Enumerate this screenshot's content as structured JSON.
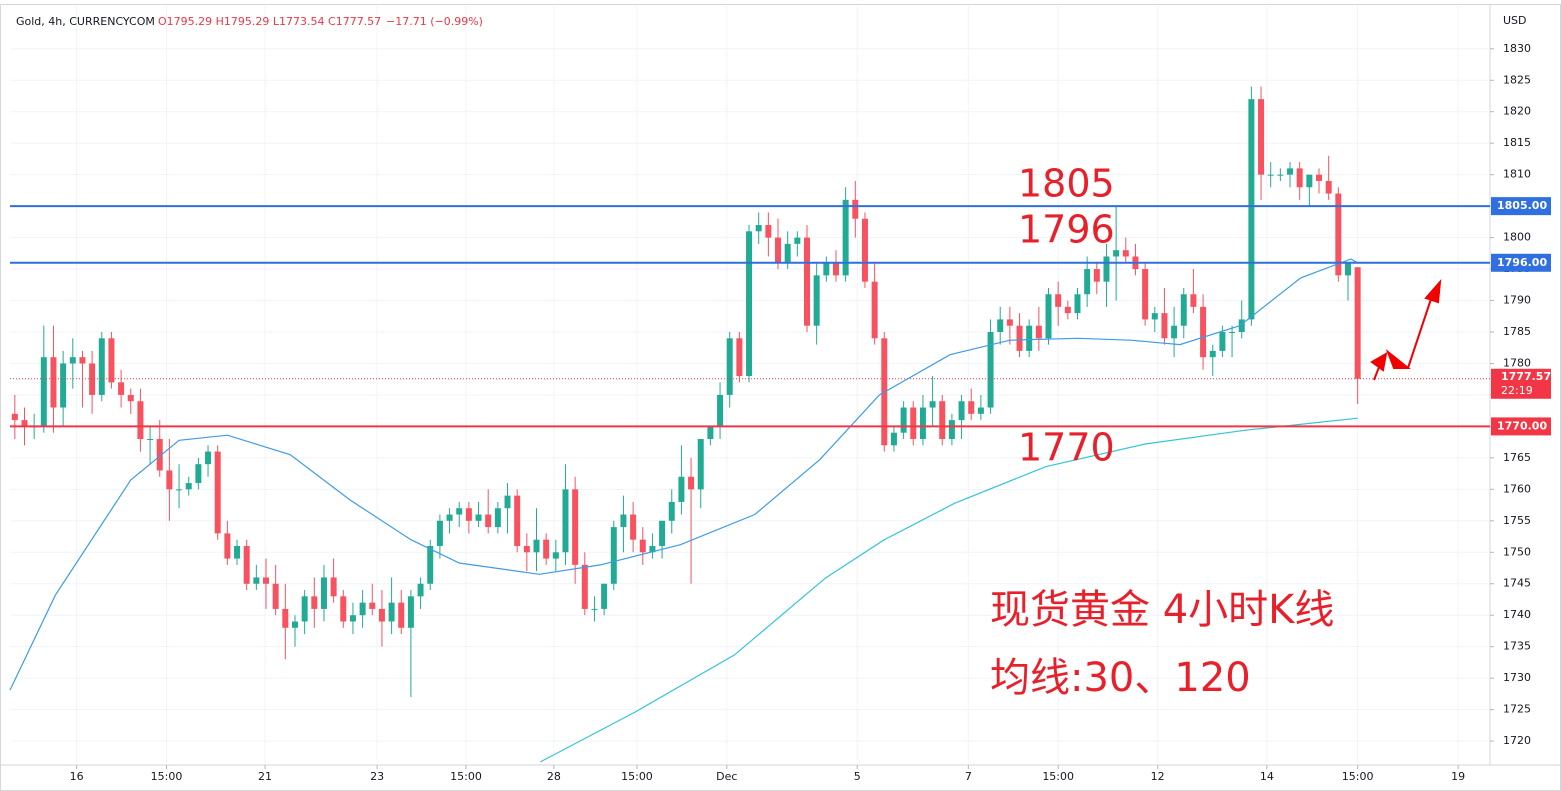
{
  "chart_data": {
    "type": "candlestick",
    "symbol": "Gold, 4h, CURRENCYCOM",
    "ohlc_text": "O1795.29 H1795.29 L1773.54 C1777.57",
    "change_text": "−17.71 (−0.99%)",
    "currency": "USD",
    "up_color": "#22ab94",
    "down_color": "#f7525f",
    "xlim": [
      -0.5,
      152.7
    ],
    "ylim": [
      1716.2,
      1836.8
    ],
    "yticks": [
      1720,
      1725,
      1730,
      1735,
      1740,
      1745,
      1750,
      1755,
      1760,
      1765,
      1770,
      1775,
      1780,
      1785,
      1790,
      1795,
      1800,
      1805,
      1810,
      1815,
      1820,
      1825,
      1830
    ],
    "xticks": [
      {
        "value": 6.4,
        "label": "16"
      },
      {
        "value": 15.7,
        "label": "15:00"
      },
      {
        "value": 25.9,
        "label": "21"
      },
      {
        "value": 37.5,
        "label": "23"
      },
      {
        "value": 46.7,
        "label": "15:00"
      },
      {
        "value": 55.8,
        "label": "28"
      },
      {
        "value": 64.4,
        "label": "15:00"
      },
      {
        "value": 73.7,
        "label": "Dec"
      },
      {
        "value": 87.2,
        "label": "5"
      },
      {
        "value": 98.7,
        "label": "7"
      },
      {
        "value": 108,
        "label": "15:00"
      },
      {
        "value": 118.3,
        "label": "12"
      },
      {
        "value": 129.6,
        "label": "14"
      },
      {
        "value": 139,
        "label": "15:00"
      },
      {
        "value": 149.4,
        "label": "19"
      }
    ],
    "candles": [
      [
        1772,
        1775,
        1768,
        1771
      ],
      [
        1771,
        1773,
        1767,
        1770
      ],
      [
        1770,
        1772,
        1768,
        1770
      ],
      [
        1770,
        1786,
        1769,
        1781
      ],
      [
        1781,
        1786,
        1769,
        1773
      ],
      [
        1773,
        1782,
        1770,
        1780
      ],
      [
        1780,
        1784,
        1776,
        1781
      ],
      [
        1781,
        1782,
        1773,
        1780
      ],
      [
        1780,
        1782,
        1772,
        1775
      ],
      [
        1775,
        1785,
        1774,
        1784
      ],
      [
        1784,
        1785,
        1776,
        1777
      ],
      [
        1777,
        1779,
        1773,
        1775
      ],
      [
        1775,
        1776,
        1772,
        1774
      ],
      [
        1774,
        1776,
        1766,
        1768
      ],
      [
        1768,
        1770,
        1764,
        1768
      ],
      [
        1768,
        1771,
        1762,
        1763
      ],
      [
        1763,
        1768,
        1755,
        1760
      ],
      [
        1760,
        1764,
        1757,
        1760
      ],
      [
        1760,
        1762,
        1759,
        1761
      ],
      [
        1761,
        1765,
        1760,
        1764
      ],
      [
        1764,
        1767,
        1762,
        1766
      ],
      [
        1766,
        1767,
        1752,
        1753
      ],
      [
        1753,
        1755,
        1748,
        1749
      ],
      [
        1749,
        1752,
        1748,
        1751
      ],
      [
        1751,
        1752,
        1744,
        1745
      ],
      [
        1745,
        1748,
        1744,
        1746
      ],
      [
        1746,
        1749,
        1741,
        1745
      ],
      [
        1745,
        1748,
        1740,
        1741
      ],
      [
        1741,
        1745,
        1733,
        1738
      ],
      [
        1738,
        1740,
        1735,
        1739
      ],
      [
        1739,
        1744,
        1737,
        1743
      ],
      [
        1743,
        1746,
        1738,
        1741
      ],
      [
        1741,
        1748,
        1739,
        1746
      ],
      [
        1746,
        1749,
        1742,
        1743
      ],
      [
        1743,
        1744,
        1738,
        1739
      ],
      [
        1739,
        1742,
        1737,
        1740
      ],
      [
        1740,
        1744,
        1738,
        1742
      ],
      [
        1742,
        1745,
        1740,
        1741
      ],
      [
        1741,
        1744,
        1735,
        1739
      ],
      [
        1739,
        1746,
        1737,
        1742
      ],
      [
        1742,
        1744,
        1737,
        1738
      ],
      [
        1738,
        1744,
        1727,
        1743
      ],
      [
        1743,
        1746,
        1741,
        1745
      ],
      [
        1745,
        1752,
        1744,
        1751
      ],
      [
        1751,
        1756,
        1749,
        1755
      ],
      [
        1755,
        1757,
        1753,
        1756
      ],
      [
        1756,
        1758,
        1754,
        1757
      ],
      [
        1757,
        1758,
        1753,
        1755
      ],
      [
        1755,
        1758,
        1754,
        1756
      ],
      [
        1756,
        1760,
        1753,
        1754
      ],
      [
        1754,
        1758,
        1753,
        1757
      ],
      [
        1757,
        1761,
        1753,
        1759
      ],
      [
        1759,
        1760,
        1750,
        1751
      ],
      [
        1751,
        1753,
        1747,
        1750
      ],
      [
        1750,
        1757,
        1747,
        1752
      ],
      [
        1752,
        1753,
        1748,
        1749
      ],
      [
        1749,
        1752,
        1747,
        1750
      ],
      [
        1750,
        1764,
        1748,
        1760
      ],
      [
        1760,
        1762,
        1745,
        1748
      ],
      [
        1748,
        1750,
        1740,
        1741
      ],
      [
        1741,
        1743,
        1739,
        1741
      ],
      [
        1741,
        1745,
        1740,
        1745
      ],
      [
        1745,
        1755,
        1744,
        1754
      ],
      [
        1754,
        1759,
        1750,
        1756
      ],
      [
        1756,
        1758,
        1750,
        1752
      ],
      [
        1752,
        1754,
        1748,
        1750
      ],
      [
        1750,
        1753,
        1749,
        1751
      ],
      [
        1751,
        1755,
        1749,
        1755
      ],
      [
        1755,
        1760,
        1753,
        1758
      ],
      [
        1758,
        1767,
        1756,
        1762
      ],
      [
        1762,
        1765,
        1745,
        1760
      ],
      [
        1760,
        1768,
        1757,
        1768
      ],
      [
        1768,
        1770,
        1767,
        1770
      ],
      [
        1770,
        1777,
        1768,
        1775
      ],
      [
        1775,
        1785,
        1773,
        1784
      ],
      [
        1784,
        1785,
        1777,
        1778
      ],
      [
        1778,
        1802,
        1777,
        1801
      ],
      [
        1801,
        1804,
        1799,
        1802
      ],
      [
        1802,
        1804,
        1797,
        1800
      ],
      [
        1800,
        1803,
        1795,
        1796
      ],
      [
        1796,
        1801,
        1795,
        1799
      ],
      [
        1799,
        1801,
        1797,
        1800
      ],
      [
        1800,
        1802,
        1785,
        1786
      ],
      [
        1786,
        1796,
        1783,
        1794
      ],
      [
        1794,
        1797,
        1793,
        1796
      ],
      [
        1796,
        1798,
        1793,
        1794
      ],
      [
        1794,
        1808,
        1793,
        1806
      ],
      [
        1806,
        1809,
        1800,
        1803
      ],
      [
        1803,
        1804,
        1792,
        1793
      ],
      [
        1793,
        1796,
        1783,
        1784
      ],
      [
        1784,
        1785,
        1766,
        1767
      ],
      [
        1767,
        1770,
        1766,
        1769
      ],
      [
        1769,
        1774,
        1768,
        1773
      ],
      [
        1773,
        1774,
        1767,
        1768
      ],
      [
        1768,
        1775,
        1767,
        1773
      ],
      [
        1773,
        1778,
        1770,
        1774
      ],
      [
        1774,
        1775,
        1767,
        1768
      ],
      [
        1768,
        1772,
        1767,
        1771
      ],
      [
        1771,
        1775,
        1768,
        1774
      ],
      [
        1774,
        1776,
        1771,
        1772
      ],
      [
        1772,
        1775,
        1771,
        1773
      ],
      [
        1773,
        1787,
        1772,
        1785
      ],
      [
        1785,
        1789,
        1783,
        1787
      ],
      [
        1787,
        1789,
        1783,
        1786
      ],
      [
        1786,
        1788,
        1781,
        1782
      ],
      [
        1782,
        1787,
        1781,
        1786
      ],
      [
        1786,
        1789,
        1782,
        1784
      ],
      [
        1784,
        1792,
        1783,
        1791
      ],
      [
        1791,
        1793,
        1786,
        1789
      ],
      [
        1789,
        1790,
        1787,
        1788
      ],
      [
        1788,
        1792,
        1787,
        1791
      ],
      [
        1791,
        1797,
        1789,
        1795
      ],
      [
        1795,
        1796,
        1791,
        1793
      ],
      [
        1793,
        1799,
        1789,
        1797
      ],
      [
        1797,
        1805,
        1790,
        1798
      ],
      [
        1798,
        1800,
        1796,
        1797
      ],
      [
        1797,
        1799,
        1794,
        1795
      ],
      [
        1795,
        1796,
        1786,
        1787
      ],
      [
        1787,
        1789,
        1785,
        1788
      ],
      [
        1788,
        1792,
        1783,
        1784
      ],
      [
        1784,
        1789,
        1781,
        1786
      ],
      [
        1786,
        1792,
        1784,
        1791
      ],
      [
        1791,
        1795,
        1788,
        1789
      ],
      [
        1789,
        1791,
        1779,
        1781
      ],
      [
        1781,
        1783,
        1778,
        1782
      ],
      [
        1782,
        1786,
        1781,
        1785
      ],
      [
        1785,
        1786,
        1781,
        1785
      ],
      [
        1785,
        1790,
        1784,
        1787
      ],
      [
        1787,
        1824,
        1786,
        1822
      ],
      [
        1822,
        1824,
        1806,
        1810
      ],
      [
        1810,
        1812,
        1808,
        1810
      ],
      [
        1810,
        1811,
        1809,
        1810
      ],
      [
        1810,
        1812,
        1808,
        1811
      ],
      [
        1811,
        1812,
        1806,
        1808
      ],
      [
        1808,
        1810,
        1805,
        1810
      ],
      [
        1810,
        1811,
        1807,
        1809
      ],
      [
        1809,
        1813,
        1806,
        1807
      ],
      [
        1807,
        1808,
        1793,
        1794
      ],
      [
        1794,
        1796,
        1790,
        1796
      ],
      [
        1795.29,
        1795.29,
        1773.54,
        1777.57
      ]
    ],
    "series": [
      {
        "color": "#3d9be9",
        "x": [
          -0.5,
          4.2,
          12,
          17,
          22,
          28.5,
          34.7,
          41,
          46,
          54.3,
          60.6,
          68.9,
          76.6,
          83.3,
          89.5,
          96.8,
          103,
          110,
          115.5,
          120.6,
          126.8,
          133.1,
          138.3,
          139
        ],
        "values": [
          1728.1,
          1743.2,
          1761.5,
          1767.8,
          1768.6,
          1765.5,
          1758.3,
          1752,
          1748.3,
          1746.5,
          1748,
          1751.2,
          1756,
          1764.7,
          1775,
          1781.4,
          1783.7,
          1784,
          1783.7,
          1783,
          1786,
          1793.6,
          1796.6,
          1796
        ]
      },
      {
        "color": "#33c5d6",
        "x": [
          54.4,
          64.2,
          74.5,
          83.9,
          90,
          97.3,
          106.7,
          117,
          127.4,
          139
        ],
        "values": [
          1716.7,
          1724.6,
          1733.7,
          1745.9,
          1752,
          1757.8,
          1763.6,
          1767.2,
          1769.4,
          1771.3
        ]
      }
    ],
    "levels": [
      {
        "value": 1805,
        "label": "1805.00",
        "color": "#2f6fe0"
      },
      {
        "value": 1796,
        "label": "1796.00",
        "color": "#2f6fe0"
      },
      {
        "value": 1770,
        "label": "1770.00",
        "color": "#f23645"
      }
    ],
    "price_line": {
      "value": 1777.57,
      "label": "1777.57",
      "countdown": "22:19",
      "color": "#f23645"
    },
    "annotations": [
      "1805",
      "1796",
      "1770",
      "现货黄金 4小时K线",
      "均线:30、120"
    ]
  }
}
